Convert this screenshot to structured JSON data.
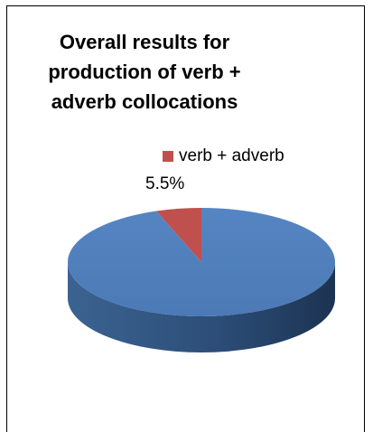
{
  "chart_data": {
    "type": "pie",
    "title": "Overall results for production of verb + adverb collocations",
    "title_lines": [
      "Overall results for",
      "production of verb +",
      "adverb collocations"
    ],
    "slices": [
      {
        "label": "verb + adverb",
        "value": 5.5,
        "color": "#c0504d",
        "data_label": "5.5%"
      },
      {
        "value": 94.5,
        "color": "#4f81bd"
      }
    ],
    "legend": {
      "position": "top-right",
      "entries": [
        "verb + adverb"
      ]
    },
    "style": "3d"
  }
}
